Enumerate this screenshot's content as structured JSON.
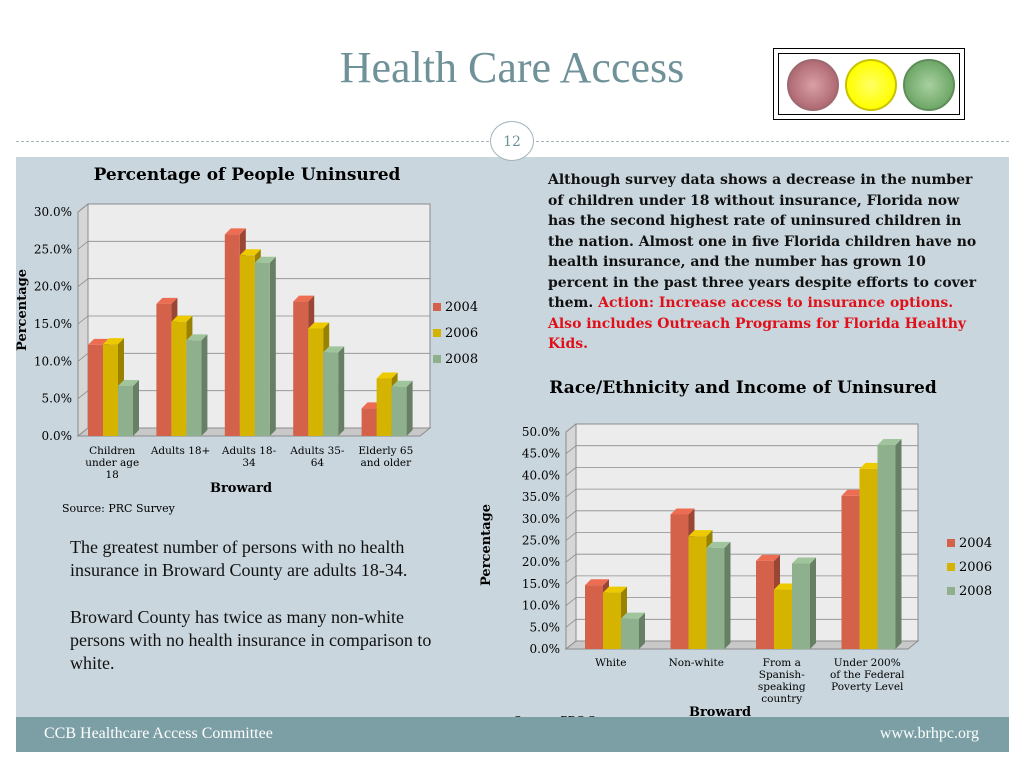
{
  "slide": {
    "title": "Health Care Access",
    "page_number": "12",
    "footer_left": "CCB Healthcare Access Committee",
    "footer_right": "www.brhpc.org",
    "traffic_light": {
      "icons": [
        "red-light-icon",
        "yellow-light-icon",
        "green-light-icon"
      ],
      "colors": [
        "#b06a74",
        "#ffff00",
        "#6fa868"
      ]
    }
  },
  "left_text": {
    "p1": "The greatest number of persons with no health insurance in Broward County are adults 18-34.",
    "p2": "Broward County has twice as many non-white persons with no health insurance in comparison to white."
  },
  "right_text": {
    "body": "Although survey data shows  a decrease in the number of children under 18 without insurance, Florida now has the second highest rate of uninsured children in the nation. Almost one in five Florida children have no health insurance, and the number has grown 10 percent in the past three years despite efforts to cover them.",
    "action": "Action: Increase access to insurance options. Also includes Outreach Programs for Florida Healthy Kids."
  },
  "chart_data": [
    {
      "type": "bar",
      "title": "Percentage of People Uninsured",
      "xlabel": "Broward",
      "ylabel": "Percentage",
      "ylim": [
        0,
        30
      ],
      "y_ticks": [
        "0.0%",
        "5.0%",
        "10.0%",
        "15.0%",
        "20.0%",
        "25.0%",
        "30.0%"
      ],
      "categories": [
        [
          "Children",
          "under age",
          "18"
        ],
        [
          "Adults 18+"
        ],
        [
          "Adults 18-",
          "34"
        ],
        [
          "Adults 35-",
          "64"
        ],
        [
          "Elderly 65",
          "and older"
        ]
      ],
      "series": [
        {
          "name": "2004",
          "values": [
            12.2,
            17.7,
            27.0,
            18.0,
            3.7
          ],
          "color": "#d4614a"
        },
        {
          "name": "2006",
          "values": [
            12.3,
            15.3,
            24.2,
            14.4,
            7.7
          ],
          "color": "#d4b400"
        },
        {
          "name": "2008",
          "values": [
            6.7,
            12.8,
            23.2,
            11.2,
            6.6
          ],
          "color": "#8fb08c"
        }
      ],
      "legend": "right",
      "source": "Source:  PRC Survey"
    },
    {
      "type": "bar",
      "title": "Race/Ethnicity and Income of Uninsured",
      "xlabel": "Broward",
      "ylabel": "Percentage",
      "ylim": [
        0,
        50
      ],
      "y_ticks": [
        "0.0%",
        "5.0%",
        "10.0%",
        "15.0%",
        "20.0%",
        "25.0%",
        "30.0%",
        "35.0%",
        "40.0%",
        "45.0%",
        "50.0%"
      ],
      "categories": [
        [
          "White"
        ],
        [
          "Non-white"
        ],
        [
          "From a",
          "Spanish-",
          "speaking",
          "country"
        ],
        [
          "Under 200%",
          "of the Federal",
          "Poverty Level"
        ]
      ],
      "series": [
        {
          "name": "2004",
          "values": [
            14.7,
            31.0,
            20.3,
            35.3
          ],
          "color": "#d4614a"
        },
        {
          "name": "2006",
          "values": [
            13.0,
            26.0,
            13.7,
            41.5
          ],
          "color": "#d4b400"
        },
        {
          "name": "2008",
          "values": [
            7.0,
            23.3,
            19.7,
            47.0
          ],
          "color": "#8fb08c"
        }
      ],
      "legend": "right",
      "source": "Source:  PRC Survey"
    }
  ]
}
